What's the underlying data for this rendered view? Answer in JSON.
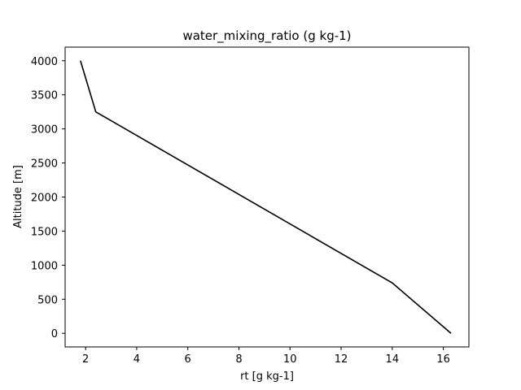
{
  "chart_data": {
    "type": "line",
    "title": "water_mixing_ratio (g kg-1)",
    "xlabel": "rt [g kg-1]",
    "ylabel": "Altitude [m]",
    "xlim": [
      1.2,
      17.0
    ],
    "ylim": [
      -200,
      4200
    ],
    "xticks": [
      2,
      4,
      6,
      8,
      10,
      12,
      14,
      16
    ],
    "yticks": [
      0,
      500,
      1000,
      1500,
      2000,
      2500,
      3000,
      3500,
      4000
    ],
    "grid": false,
    "series": [
      {
        "color": "#000000",
        "x": [
          1.8,
          2.4,
          14.0,
          16.3
        ],
        "y": [
          4000,
          3250,
          740,
          0
        ]
      }
    ]
  }
}
